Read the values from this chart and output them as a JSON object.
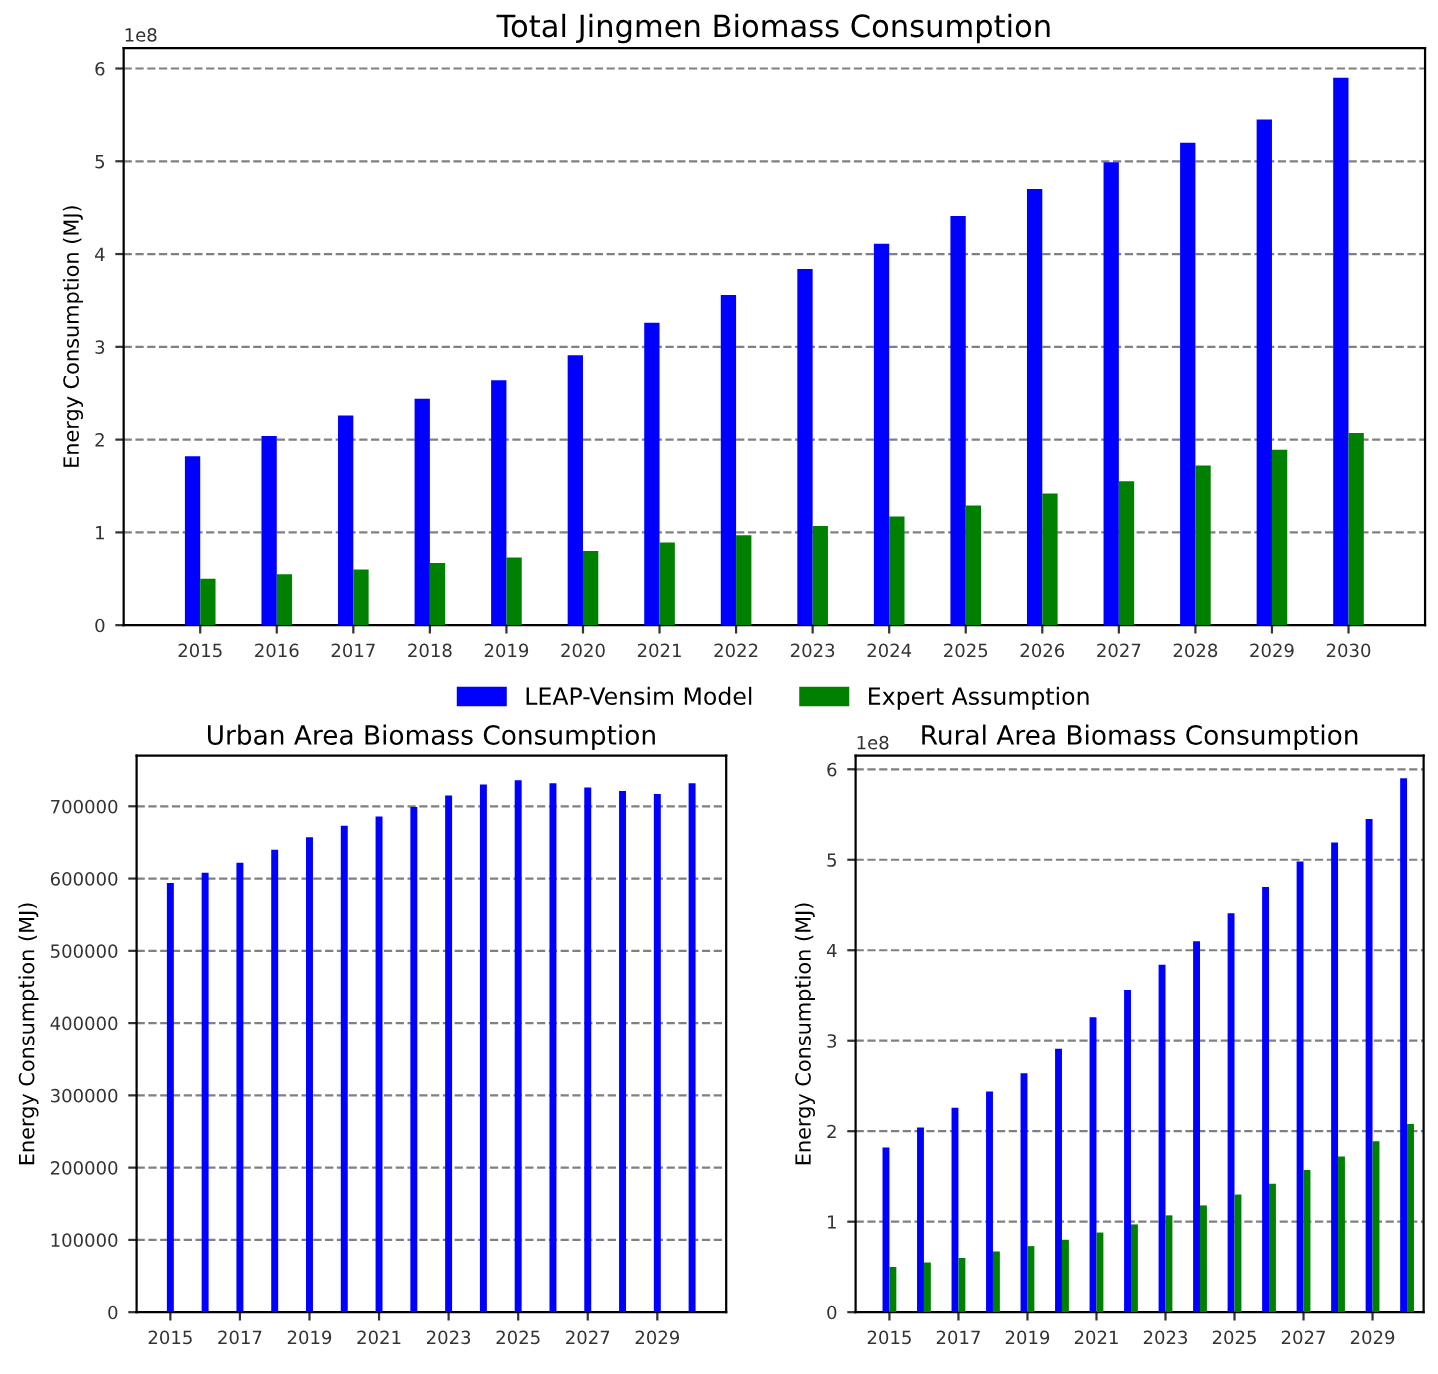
{
  "chart_data": [
    {
      "type": "bar",
      "title": "Total Jingmen Biomass Consumption",
      "ylabel": "Energy Consumption (MJ)",
      "annotations": [
        "1e8"
      ],
      "categories": [
        "2015",
        "2016",
        "2017",
        "2018",
        "2019",
        "2020",
        "2021",
        "2022",
        "2023",
        "2024",
        "2025",
        "2026",
        "2027",
        "2028",
        "2029",
        "2030"
      ],
      "series": [
        {
          "name": "LEAP-Vensim Model",
          "color": "#0000ff",
          "values": [
            1.82,
            2.04,
            2.26,
            2.44,
            2.64,
            2.91,
            3.26,
            3.56,
            3.84,
            4.11,
            4.41,
            4.7,
            4.99,
            5.2,
            5.45,
            5.9
          ]
        },
        {
          "name": "Expert Assumption",
          "color": "#008000",
          "values": [
            0.5,
            0.55,
            0.6,
            0.67,
            0.73,
            0.8,
            0.89,
            0.97,
            1.07,
            1.17,
            1.29,
            1.42,
            1.55,
            1.72,
            1.89,
            2.07
          ]
        }
      ],
      "ylim": [
        0,
        6.22
      ],
      "yticks": [
        0,
        1,
        2,
        3,
        4,
        5,
        6
      ],
      "grid": "y",
      "legend": "bottom"
    },
    {
      "type": "bar",
      "title": "Urban Area Biomass Consumption",
      "ylabel": "Energy Consumption (MJ)",
      "x": [
        2015,
        2016,
        2017,
        2018,
        2019,
        2020,
        2021,
        2022,
        2023,
        2024,
        2025,
        2026,
        2027,
        2028,
        2029,
        2030
      ],
      "series": [
        {
          "color": "#0000ff",
          "values": [
            594000,
            608000,
            622000,
            640000,
            657000,
            673000,
            686000,
            699000,
            715000,
            730000,
            736000,
            732000,
            726000,
            721000,
            717000,
            732000
          ]
        }
      ],
      "xlim": [
        2014.03,
        2030.98
      ],
      "xticks": [
        2015,
        2017,
        2019,
        2021,
        2023,
        2025,
        2027,
        2029
      ],
      "ylim": [
        0,
        770000
      ],
      "yticks": [
        0,
        100000,
        200000,
        300000,
        400000,
        500000,
        600000,
        700000
      ],
      "grid": "y"
    },
    {
      "type": "bar",
      "title": "Rural Area Biomass Consumption",
      "ylabel": "Energy Consumption (MJ)",
      "annotations": [
        "1e8"
      ],
      "x": [
        2015,
        2016,
        2017,
        2018,
        2019,
        2020,
        2021,
        2022,
        2023,
        2024,
        2025,
        2026,
        2027,
        2028,
        2029,
        2030
      ],
      "series": [
        {
          "color": "#0000ff",
          "values": [
            1.82,
            2.04,
            2.26,
            2.44,
            2.64,
            2.91,
            3.26,
            3.56,
            3.84,
            4.1,
            4.41,
            4.7,
            4.98,
            5.19,
            5.45,
            5.9
          ]
        },
        {
          "color": "#008000",
          "values": [
            0.5,
            0.55,
            0.6,
            0.67,
            0.73,
            0.8,
            0.88,
            0.97,
            1.07,
            1.18,
            1.3,
            1.42,
            1.57,
            1.72,
            1.89,
            2.08
          ]
        }
      ],
      "xlim": [
        2014.02,
        2030.48
      ],
      "xticks": [
        2015,
        2017,
        2019,
        2021,
        2023,
        2025,
        2027,
        2029
      ],
      "ylim": [
        0,
        6.15
      ],
      "yticks": [
        0,
        1,
        2,
        3,
        4,
        5,
        6
      ],
      "grid": "y"
    }
  ]
}
